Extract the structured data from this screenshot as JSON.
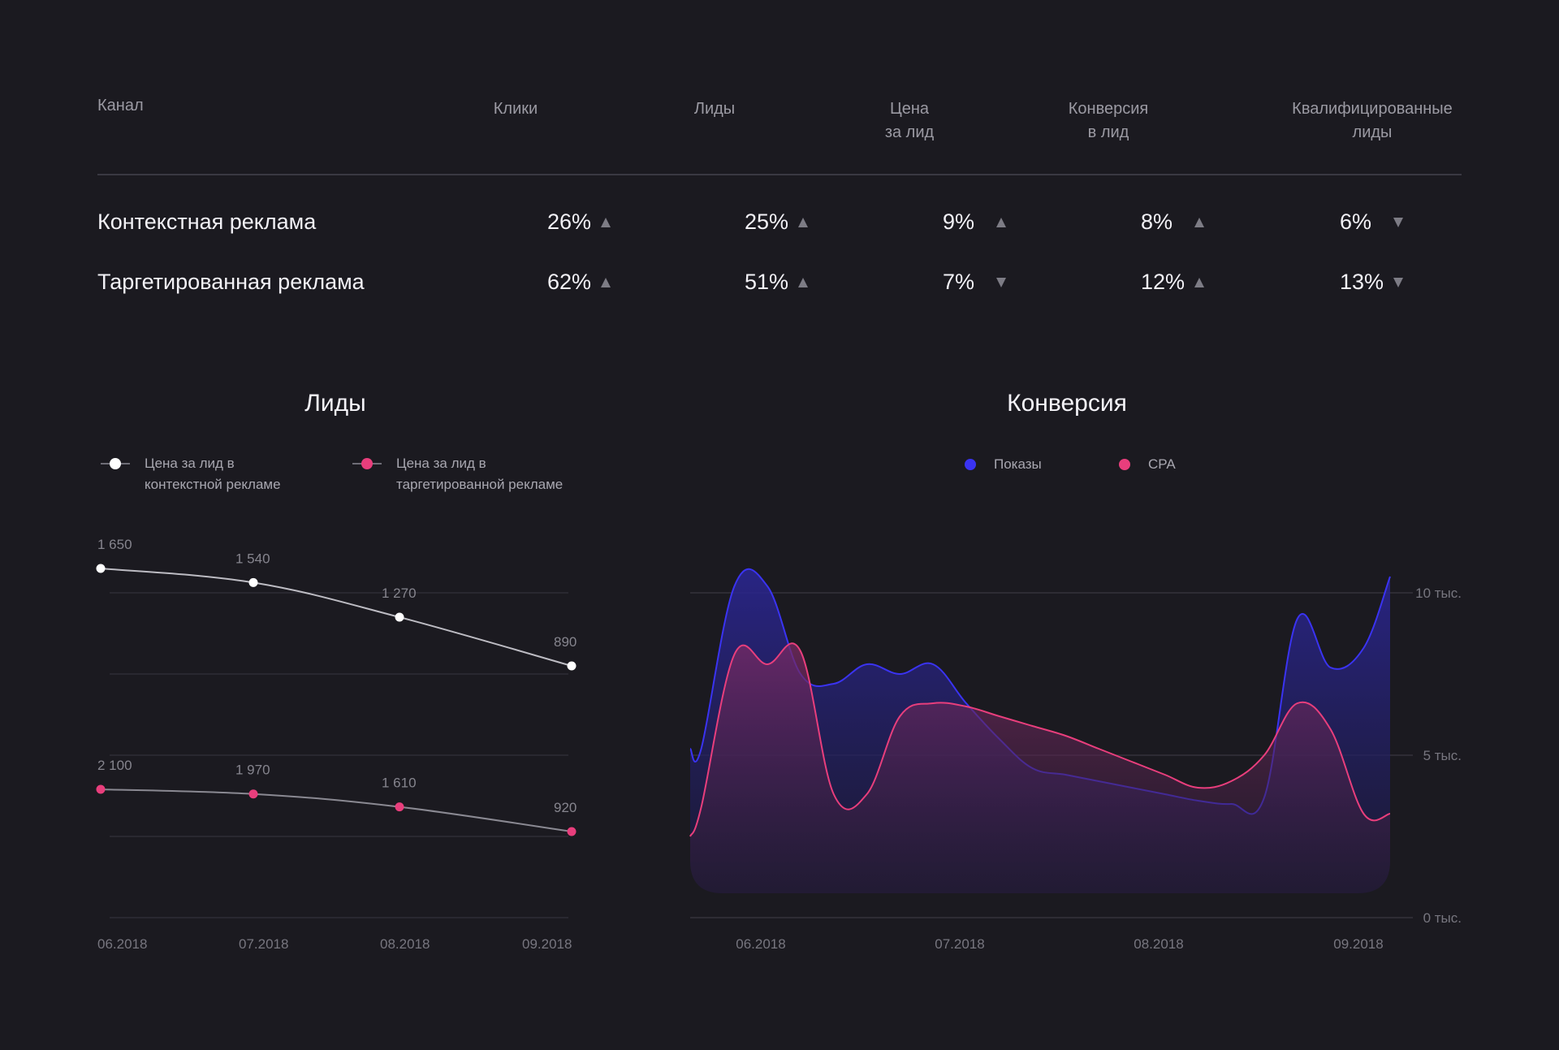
{
  "table": {
    "headers": [
      "Канал",
      "Клики",
      "Лиды",
      "Цена\nза лид",
      "Конверсия\nв лид",
      "Квалифицированные\nлиды"
    ],
    "rows": [
      {
        "channel": "Контекстная реклама",
        "cells": [
          {
            "value": "26%",
            "trend": "up"
          },
          {
            "value": "25%",
            "trend": "up"
          },
          {
            "value": "9%",
            "trend": "up"
          },
          {
            "value": "8%",
            "trend": "up"
          },
          {
            "value": "6%",
            "trend": "down"
          }
        ]
      },
      {
        "channel": "Таргетированная реклама",
        "cells": [
          {
            "value": "62%",
            "trend": "up"
          },
          {
            "value": "51%",
            "trend": "up"
          },
          {
            "value": "7%",
            "trend": "down"
          },
          {
            "value": "12%",
            "trend": "up"
          },
          {
            "value": "13%",
            "trend": "down"
          }
        ]
      }
    ]
  },
  "colors": {
    "background": "#1b1a20",
    "white_series": "#ffffff",
    "pink": "#e83e7c",
    "blue": "#3a33f2",
    "grid": "#34333b"
  },
  "chart_data": [
    {
      "type": "line",
      "title": "Лиды",
      "categories": [
        "06.2018",
        "07.2018",
        "08.2018",
        "09.2018"
      ],
      "series": [
        {
          "name": "Цена за лид в\nконтекстной рекламе",
          "values": [
            1650,
            1540,
            1270,
            890
          ],
          "labels": [
            "1 650",
            "1 540",
            "1 270",
            "890"
          ]
        },
        {
          "name": "Цена за лид в\nтаргетированной рекламе",
          "values": [
            2100,
            1970,
            1610,
            920
          ],
          "labels": [
            "2 100",
            "1 970",
            "1 610",
            "920"
          ]
        }
      ],
      "legend": "top"
    },
    {
      "type": "area",
      "title": "Конверсия",
      "categories": [
        "06.2018",
        "07.2018",
        "08.2018",
        "09.2018"
      ],
      "y_ticks": [
        "10 тыс.",
        "5 тыс.",
        "0 тыс."
      ],
      "ylim": [
        0,
        10000
      ],
      "grid": true,
      "legend": "top",
      "x": [
        0,
        0.05,
        0.2,
        0.35,
        0.5,
        0.65,
        0.8,
        0.95,
        1.1,
        1.25,
        1.4,
        1.55,
        1.7,
        1.85,
        2.0,
        2.15,
        2.3,
        2.45,
        2.6,
        2.75,
        2.9,
        3.05,
        3.17
      ],
      "series": [
        {
          "name": "Показы",
          "values": [
            5200,
            5200,
            10200,
            10200,
            7500,
            7200,
            7800,
            7500,
            7800,
            6600,
            5500,
            4600,
            4400,
            4200,
            4000,
            3800,
            3600,
            3500,
            3700,
            9200,
            7700,
            8300,
            10500
          ]
        },
        {
          "name": "CPA",
          "values": [
            2500,
            3400,
            8100,
            7800,
            8200,
            3800,
            3800,
            6200,
            6600,
            6500,
            6200,
            5900,
            5600,
            5200,
            4800,
            4400,
            4000,
            4200,
            5000,
            6600,
            5800,
            3200,
            3200
          ]
        }
      ]
    }
  ]
}
